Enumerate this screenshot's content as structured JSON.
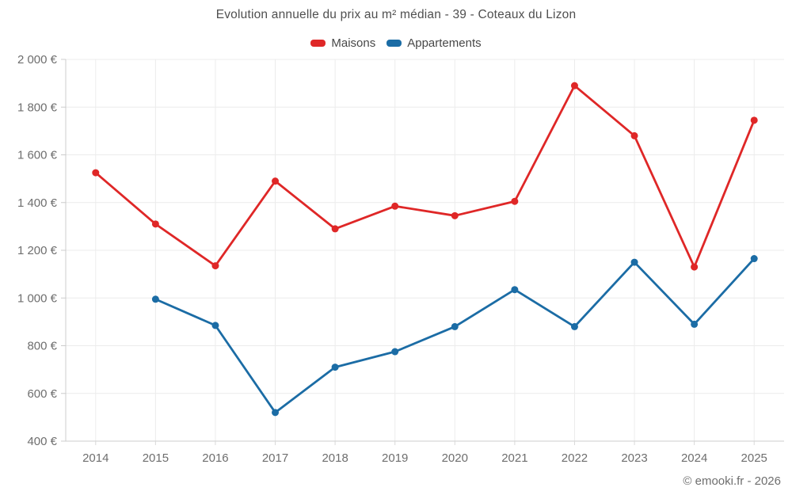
{
  "title": "Evolution annuelle du prix au m² médian - 39 - Coteaux du Lizon",
  "watermark": "© emooki.fr - 2026",
  "colors": {
    "maisons": "#df2727",
    "appartements": "#1b6ca5",
    "grid": "#ececec",
    "axis": "#cccccc",
    "tick": "#d9d9d9",
    "axis_label": "#6e6e6e"
  },
  "chart_data": {
    "type": "line",
    "categories": [
      2014,
      2015,
      2016,
      2017,
      2018,
      2019,
      2020,
      2021,
      2022,
      2023,
      2024,
      2025
    ],
    "series": [
      {
        "name": "Maisons",
        "color": "#df2727",
        "values": [
          1525,
          1310,
          1135,
          1490,
          1290,
          1385,
          1345,
          1405,
          1890,
          1680,
          1130,
          1745
        ]
      },
      {
        "name": "Appartements",
        "color": "#1b6ca5",
        "values": [
          null,
          995,
          885,
          520,
          710,
          775,
          880,
          1035,
          880,
          1150,
          890,
          1165
        ]
      }
    ],
    "title": "Evolution annuelle du prix au m² médian - 39 - Coteaux du Lizon",
    "xlabel": "",
    "ylabel": "",
    "ylim": [
      400,
      2000
    ],
    "ytick_values": [
      400,
      600,
      800,
      1000,
      1200,
      1400,
      1600,
      1800,
      2000
    ],
    "ytick_labels": [
      "400 €",
      "600 €",
      "800 €",
      "1 000 €",
      "1 200 €",
      "1 400 €",
      "1 600 €",
      "1 800 €",
      "2 000 €"
    ],
    "xtick_labels": [
      "2014",
      "2015",
      "2016",
      "2017",
      "2018",
      "2019",
      "2020",
      "2021",
      "2022",
      "2023",
      "2024",
      "2025"
    ],
    "grid": true,
    "legend_position": "top",
    "annotation": "© emooki.fr - 2026"
  }
}
